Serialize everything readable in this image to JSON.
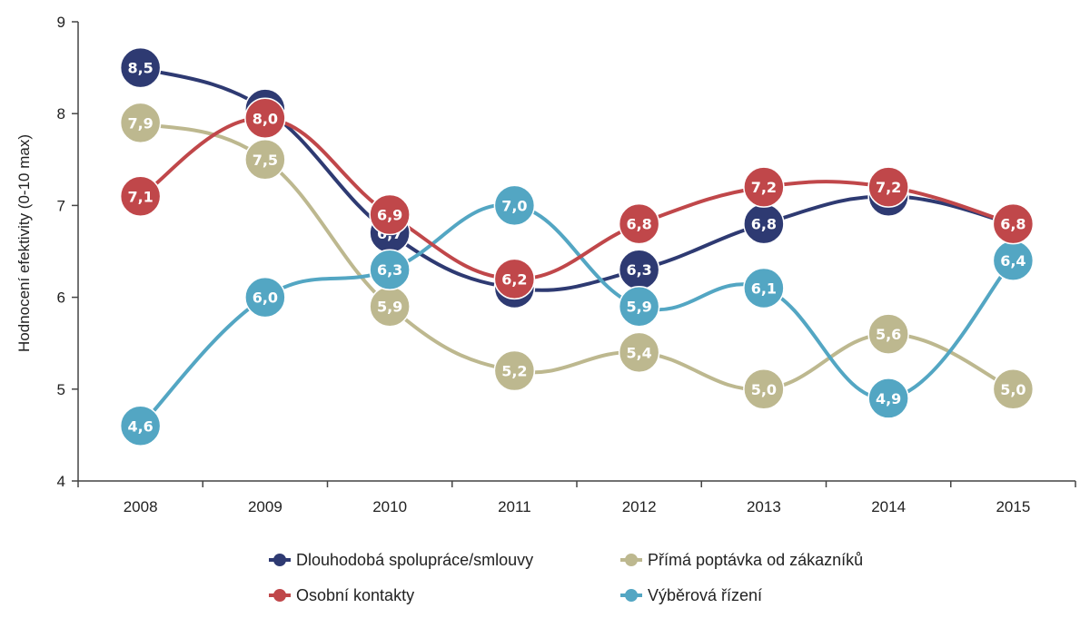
{
  "chart_data": {
    "type": "line",
    "categories": [
      "2008",
      "2009",
      "2010",
      "2011",
      "2012",
      "2013",
      "2014",
      "2015"
    ],
    "ylabel": "Hodnocení efektivity (0-10 max)",
    "xlabel": "",
    "ylim": [
      4,
      9
    ],
    "yticks": [
      4,
      5,
      6,
      7,
      8,
      9
    ],
    "grid": false,
    "legend_position": "bottom",
    "series": [
      {
        "name": "Dlouhodobá spolupráce/smlouvy",
        "color": "#2e3a72",
        "values": [
          8.5,
          8.05,
          6.7,
          6.1,
          6.3,
          6.8,
          7.1,
          6.8
        ],
        "labels": [
          "8,5",
          "",
          "6,7",
          "6,1",
          "6,3",
          "6,8",
          "7,1",
          ""
        ]
      },
      {
        "name": "Přímá poptávka od zákazníků",
        "color": "#bdb88f",
        "values": [
          7.9,
          7.5,
          5.9,
          5.2,
          5.4,
          5.0,
          5.6,
          5.0
        ],
        "labels": [
          "7,9",
          "7,5",
          "5,9",
          "5,2",
          "5,4",
          "5,0",
          "5,6",
          "5,0"
        ]
      },
      {
        "name": "Osobní kontakty",
        "color": "#c0474a",
        "values": [
          7.1,
          7.95,
          6.9,
          6.2,
          6.8,
          7.2,
          7.2,
          6.8
        ],
        "labels": [
          "7,1",
          "8,0",
          "6,9",
          "6,2",
          "6,8",
          "7,2",
          "7,2",
          "6,8"
        ]
      },
      {
        "name": "Výběrová řízení",
        "color": "#53a6c3",
        "values": [
          4.6,
          6.0,
          6.3,
          7.0,
          5.9,
          6.1,
          4.9,
          6.4
        ],
        "labels": [
          "4,6",
          "6,0",
          "6,3",
          "7,0",
          "5,9",
          "6,1",
          "4,9",
          "6,4"
        ]
      }
    ],
    "draw_order": [
      0,
      1,
      3,
      2
    ]
  }
}
